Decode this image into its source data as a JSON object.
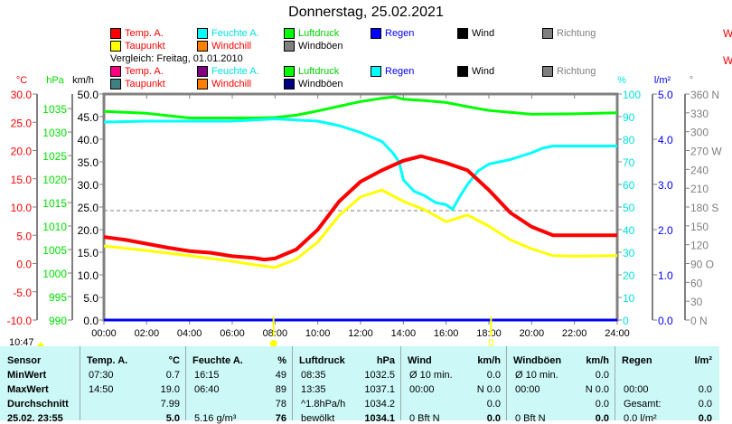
{
  "title": "Donnerstag, 25.02.2021",
  "legend_current": [
    {
      "label": "Temp. A.",
      "color": "#ff0000",
      "text": "#ff0000"
    },
    {
      "label": "Feuchte A.",
      "color": "#00ffff",
      "text": "#00e0e0"
    },
    {
      "label": "Luftdruck",
      "color": "#00ff00",
      "text": "#00d000"
    },
    {
      "label": "Regen",
      "color": "#0000ff",
      "text": "#0000ff"
    },
    {
      "label": "Wind",
      "color": "#000000",
      "text": "#000000"
    },
    {
      "label": "Richtung",
      "color": "#808080",
      "text": "#808080"
    },
    {
      "label": "Taupunkt",
      "color": "#ffff00",
      "text": "#ff0000"
    },
    {
      "label": "Windchill",
      "color": "#ff8000",
      "text": "#ff0000"
    },
    {
      "label": "Windböen",
      "color": "#808080",
      "text": "#000000"
    }
  ],
  "compare_label": "Vergleich: Freitag, 01.01.2010",
  "legend_compare": [
    {
      "label": "Temp. A.",
      "color": "#ff0080",
      "text": "#ff0000"
    },
    {
      "label": "Feuchte A.",
      "color": "#800080",
      "text": "#00e0e0"
    },
    {
      "label": "Luftdruck",
      "color": "#00ff00",
      "text": "#00d000"
    },
    {
      "label": "Regen",
      "color": "#00ffff",
      "text": "#0000ff"
    },
    {
      "label": "Wind",
      "color": "#000000",
      "text": "#000000"
    },
    {
      "label": "Richtung",
      "color": "#808080",
      "text": "#808080"
    },
    {
      "label": "Taupunkt",
      "color": "#408080",
      "text": "#ff0000"
    },
    {
      "label": "Windchill",
      "color": "#ff8000",
      "text": "#ff0000"
    },
    {
      "label": "Windböen",
      "color": "#000080",
      "text": "#000000"
    }
  ],
  "sun_time": "10:47",
  "chart_data": {
    "type": "line",
    "title": "Donnerstag, 25.02.2021",
    "x_ticks": [
      "00:00",
      "02:00",
      "04:00",
      "06:00",
      "08:00",
      "10:00",
      "12:00",
      "14:00",
      "16:00",
      "18:00",
      "20:00",
      "22:00",
      "24:00"
    ],
    "axes": {
      "temp": {
        "unit": "°C",
        "range": [
          -10,
          30
        ],
        "ticks": [
          "30.0",
          "25.0",
          "20.0",
          "15.0",
          "10.0",
          "5.0",
          "0.0",
          "-5.0",
          "-10.0"
        ],
        "color": "#ff0000"
      },
      "pressure": {
        "unit": "hPa",
        "range": [
          990,
          1038.1
        ],
        "ticks": [
          "1035",
          "1030",
          "1025",
          "1020",
          "1015",
          "1010",
          "1005",
          "1000",
          "995",
          "990"
        ],
        "color": "#00e000"
      },
      "wind": {
        "unit": "km/h",
        "range": [
          0,
          50
        ],
        "ticks": [
          "50.0",
          "45.0",
          "40.0",
          "35.0",
          "30.0",
          "25.0",
          "20.0",
          "15.0",
          "10.0",
          "5.0",
          "0.0"
        ],
        "color": "#000000"
      },
      "humidity": {
        "unit": "%",
        "range": [
          0,
          100
        ],
        "ticks": [
          "100",
          "90",
          "80",
          "70",
          "60",
          "50",
          "40",
          "30",
          "20",
          "10",
          "0"
        ],
        "color": "#00e0e0"
      },
      "rain": {
        "unit": "l/m²",
        "range": [
          0,
          5
        ],
        "ticks": [
          "5.0",
          "4.0",
          "3.0",
          "2.0",
          "1.0",
          "0.0"
        ],
        "color": "#0000ff"
      },
      "direction": {
        "unit": "°",
        "range": [
          0,
          360
        ],
        "ticks": [
          "360 N",
          "330",
          "300",
          "270 W",
          "240",
          "210",
          "180 S",
          "150",
          "120",
          "90  O",
          "60",
          "30",
          "0   N"
        ],
        "color": "#808080"
      }
    },
    "series": [
      {
        "name": "Luftdruck",
        "axis": "pressure",
        "color": "#00ff00",
        "x": [
          0,
          2,
          4,
          6,
          7,
          8,
          9,
          10,
          11,
          12,
          13,
          13.6,
          14,
          15,
          16,
          17,
          18,
          19,
          20,
          22,
          24
        ],
        "y": [
          1034.4,
          1034,
          1033,
          1033,
          1033,
          1033.1,
          1033.6,
          1034.5,
          1035.5,
          1036.5,
          1037.2,
          1037.5,
          1037,
          1036.7,
          1036.3,
          1035.4,
          1034.6,
          1034.2,
          1033.8,
          1033.9,
          1034.1
        ]
      },
      {
        "name": "Feuchte A.",
        "axis": "humidity",
        "color": "#00ffff",
        "x": [
          0,
          2,
          4,
          6,
          8,
          9,
          10,
          11,
          12,
          12.5,
          13,
          13.5,
          13.8,
          14,
          14.5,
          15,
          15.5,
          16,
          16.3,
          16.6,
          17,
          17.5,
          18,
          19,
          20,
          20.5,
          21,
          22,
          24
        ],
        "y": [
          87.6,
          88,
          88,
          88,
          89,
          88.5,
          88,
          86,
          83,
          81,
          79,
          74,
          70,
          62,
          57,
          55,
          52,
          51,
          49,
          54,
          60,
          66,
          69,
          71,
          74,
          76,
          77,
          77,
          77
        ]
      },
      {
        "name": "Temp. A.",
        "axis": "temp",
        "color": "#ff0000",
        "x": [
          0,
          1,
          2,
          3,
          4,
          5,
          6,
          7,
          7.5,
          8,
          9,
          10,
          11,
          12,
          13,
          14,
          14.83,
          16,
          17,
          18,
          19,
          20,
          21,
          22,
          24
        ],
        "y": [
          4.7,
          4.2,
          3.5,
          2.8,
          2.2,
          1.9,
          1.3,
          1.0,
          0.7,
          0.9,
          2.5,
          6,
          11,
          14.5,
          16.5,
          18.2,
          19.0,
          17.8,
          16.5,
          13,
          9,
          6.5,
          5,
          5,
          5
        ]
      },
      {
        "name": "Taupunkt",
        "axis": "temp",
        "color": "#ffff00",
        "x": [
          0,
          2,
          4,
          6,
          7,
          8,
          9,
          10,
          11,
          12,
          13,
          14,
          15,
          16,
          17,
          18,
          19,
          20,
          21,
          22,
          24
        ],
        "y": [
          3.1,
          2.3,
          1.4,
          0.4,
          -0.2,
          -0.7,
          0.8,
          3.8,
          8.5,
          11.8,
          13,
          11,
          9.5,
          7.4,
          8.6,
          6.6,
          4.2,
          2.6,
          1.4,
          1.3,
          1.4
        ]
      },
      {
        "name": "Wind",
        "axis": "wind",
        "color": "#0000ff",
        "x": [
          0,
          24
        ],
        "y": [
          0,
          0
        ]
      }
    ]
  },
  "table": {
    "headers": [
      [
        "Sensor",
        ""
      ],
      [
        "Temp. A.",
        "°C"
      ],
      [
        "Feuchte A.",
        "%"
      ],
      [
        "Luftdruck",
        "hPa"
      ],
      [
        "Wind",
        "km/h"
      ],
      [
        "Windböen",
        "km/h"
      ],
      [
        "Regen",
        "l/m²"
      ]
    ],
    "rows": [
      [
        "MinWert",
        "07:30",
        "0.7",
        "16:15",
        "49",
        "08:35",
        "1032.5",
        "Ø 10 min.",
        "0.0",
        "Ø 10 min.",
        "0.0",
        "",
        ""
      ],
      [
        "MaxWert",
        "14:50",
        "19.0",
        "06:40",
        "89",
        "13:35",
        "1037.1",
        "00:00",
        "N 0.0",
        "00:00",
        "N 0.0",
        "00:00",
        "0.0"
      ],
      [
        "Durchschnitt",
        "",
        "7.99",
        "",
        "78",
        "^1.8hPa/h",
        "1034.2",
        "",
        "0.0",
        "",
        "0.0",
        "Gesamt:",
        "0.0"
      ],
      [
        "25.02. 23:55",
        "",
        "5.0",
        "5.16 g/m³",
        "76",
        "bewölkt",
        "1034.1",
        "0 Bft N",
        "0.0",
        "0 Bft N",
        "0.0",
        "0.0 l/m²",
        "0.0"
      ]
    ]
  }
}
